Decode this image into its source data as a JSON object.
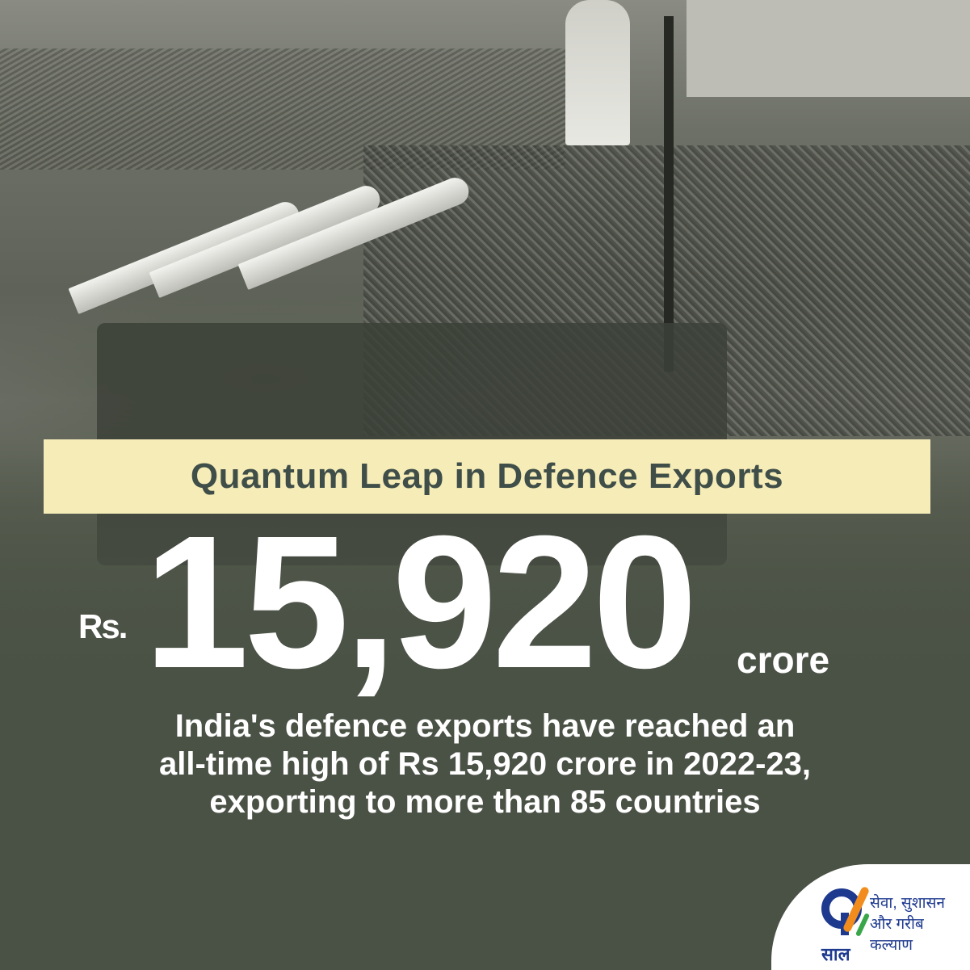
{
  "banner": {
    "title": "Quantum Leap in Defence Exports"
  },
  "headline": {
    "currency": "Rs.",
    "amount": "15,920",
    "unit": "crore"
  },
  "description": {
    "lines": [
      "India's defence exports have reached an",
      "all-time high of Rs 15,920 crore in 2022-23,",
      "exporting to more than 85 countries"
    ]
  },
  "logo": {
    "numeral_text": "साल",
    "tagline_line1": "सेवा, सुशासन",
    "tagline_line2": "और गरीब कल्याण"
  },
  "colors": {
    "background": "#4a5145",
    "banner": "#f6ecb8",
    "banner_text": "#3f4e48",
    "logo_blue": "#1e3a8f",
    "logo_saffron": "#f28c1c",
    "logo_green": "#3aa64a"
  }
}
